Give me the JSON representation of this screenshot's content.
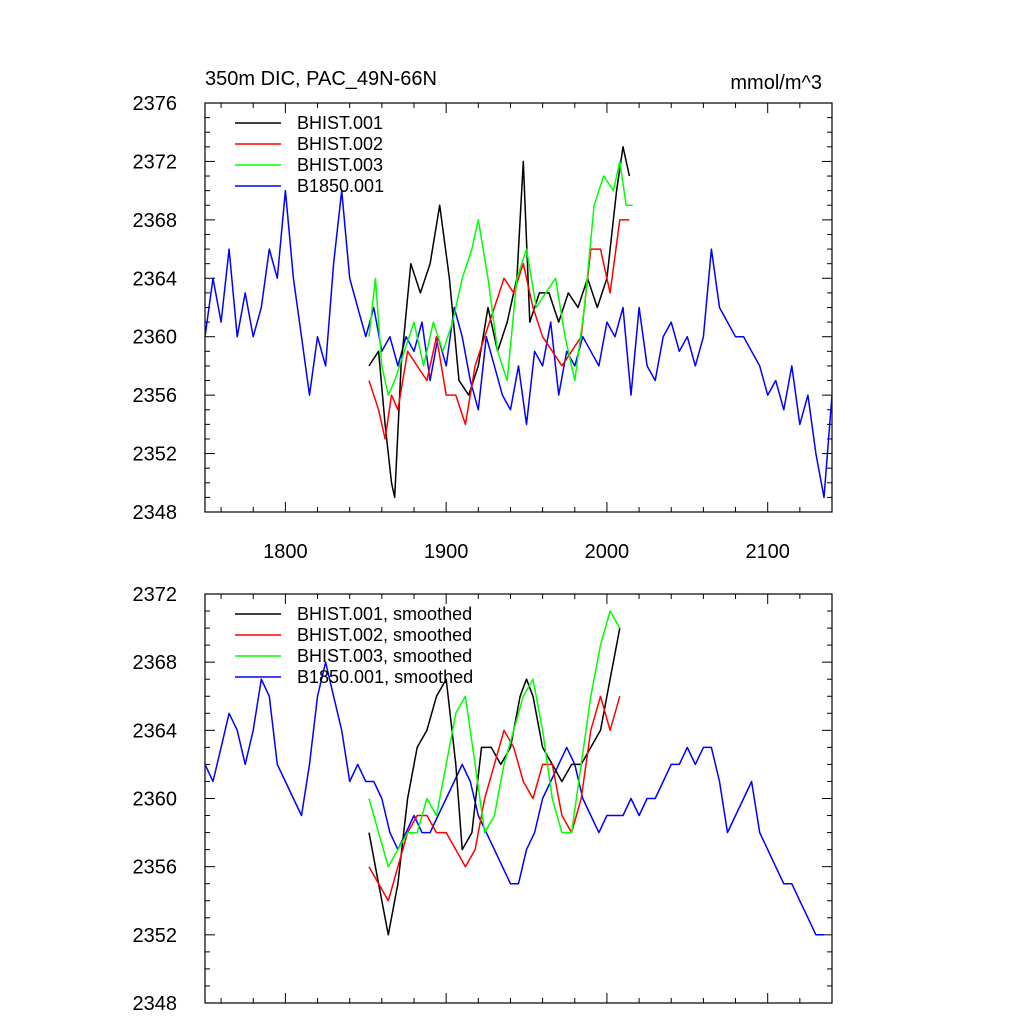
{
  "chart_data": [
    {
      "type": "line",
      "title": "350m DIC, PAC_49N-66N",
      "units": "mmol/m^3",
      "xlim": [
        1750,
        2140
      ],
      "ylim": [
        2348,
        2376
      ],
      "xticks": [
        1800,
        1900,
        2000,
        2100
      ],
      "xtick_labels": [
        "1800",
        "1900",
        "2000",
        "2100"
      ],
      "yticks": [
        2348,
        2352,
        2356,
        2360,
        2364,
        2368,
        2372,
        2376
      ],
      "ytick_labels": [
        "2348",
        "2352",
        "2356",
        "2360",
        "2364",
        "2368",
        "2372",
        "2376"
      ],
      "legend_position": "top-left",
      "series": [
        {
          "name": "BHIST.001",
          "color": "#000000",
          "x": [
            1852,
            1858,
            1862,
            1866,
            1868,
            1872,
            1878,
            1884,
            1890,
            1896,
            1902,
            1908,
            1914,
            1920,
            1926,
            1932,
            1938,
            1944,
            1948,
            1952,
            1958,
            1964,
            1970,
            1976,
            1982,
            1988,
            1994,
            2000,
            2006,
            2010,
            2014
          ],
          "y": [
            2358,
            2359,
            2354,
            2350,
            2349,
            2358,
            2365,
            2363,
            2365,
            2369,
            2364,
            2357,
            2356,
            2358,
            2362,
            2359,
            2361,
            2364,
            2372,
            2361,
            2363,
            2363,
            2361,
            2363,
            2362,
            2364,
            2362,
            2364,
            2370,
            2373,
            2371
          ]
        },
        {
          "name": "BHIST.002",
          "color": "#ff0000",
          "x": [
            1852,
            1858,
            1862,
            1866,
            1870,
            1876,
            1882,
            1888,
            1894,
            1900,
            1906,
            1912,
            1918,
            1924,
            1930,
            1936,
            1942,
            1948,
            1954,
            1960,
            1966,
            1972,
            1978,
            1984,
            1990,
            1996,
            2002,
            2008,
            2014
          ],
          "y": [
            2357,
            2355,
            2353,
            2356,
            2355,
            2359,
            2358,
            2357,
            2360,
            2356,
            2356,
            2354,
            2358,
            2360,
            2362,
            2364,
            2363,
            2365,
            2362,
            2360,
            2359,
            2358,
            2359,
            2360,
            2366,
            2366,
            2363,
            2368,
            2368
          ]
        },
        {
          "name": "BHIST.003",
          "color": "#00ff00",
          "x": [
            1852,
            1856,
            1860,
            1864,
            1868,
            1874,
            1880,
            1886,
            1892,
            1898,
            1904,
            1910,
            1916,
            1920,
            1926,
            1932,
            1938,
            1944,
            1950,
            1956,
            1962,
            1968,
            1974,
            1980,
            1986,
            1992,
            1998,
            2004,
            2008,
            2012,
            2016
          ],
          "y": [
            2360,
            2364,
            2358,
            2356,
            2357,
            2359,
            2361,
            2358,
            2361,
            2359,
            2361,
            2364,
            2366,
            2368,
            2364,
            2359,
            2357,
            2364,
            2366,
            2362,
            2363,
            2364,
            2360,
            2357,
            2362,
            2369,
            2371,
            2370,
            2372,
            2369,
            2369
          ]
        },
        {
          "name": "B1850.001",
          "color": "#0000ff",
          "x": [
            1750,
            1755,
            1760,
            1765,
            1770,
            1775,
            1780,
            1785,
            1790,
            1795,
            1800,
            1805,
            1810,
            1815,
            1820,
            1825,
            1830,
            1835,
            1840,
            1845,
            1850,
            1855,
            1860,
            1865,
            1870,
            1875,
            1880,
            1885,
            1890,
            1895,
            1900,
            1905,
            1910,
            1915,
            1920,
            1925,
            1930,
            1935,
            1940,
            1945,
            1950,
            1955,
            1960,
            1965,
            1970,
            1975,
            1980,
            1985,
            1990,
            1995,
            2000,
            2005,
            2010,
            2015,
            2020,
            2025,
            2030,
            2035,
            2040,
            2045,
            2050,
            2055,
            2060,
            2065,
            2070,
            2075,
            2080,
            2085,
            2090,
            2095,
            2100,
            2105,
            2110,
            2115,
            2120,
            2125,
            2130,
            2135,
            2140
          ],
          "y": [
            2360,
            2364,
            2361,
            2366,
            2360,
            2363,
            2360,
            2362,
            2366,
            2364,
            2370,
            2364,
            2360,
            2356,
            2360,
            2358,
            2365,
            2370,
            2364,
            2362,
            2360,
            2362,
            2359,
            2360,
            2358,
            2360,
            2359,
            2361,
            2357,
            2360,
            2358,
            2362,
            2360,
            2357,
            2355,
            2360,
            2358,
            2356,
            2355,
            2358,
            2354,
            2359,
            2358,
            2361,
            2356,
            2359,
            2358,
            2360,
            2359,
            2358,
            2361,
            2360,
            2362,
            2356,
            2362,
            2358,
            2357,
            2360,
            2361,
            2359,
            2360,
            2358,
            2360,
            2366,
            2362,
            2361,
            2360,
            2360,
            2359,
            2358,
            2356,
            2357,
            2355,
            2358,
            2354,
            2356,
            2352,
            2349,
            2356
          ]
        }
      ]
    },
    {
      "type": "line",
      "title": "",
      "xlim": [
        1750,
        2140
      ],
      "ylim": [
        2348,
        2372
      ],
      "xticks": [
        1800,
        1900,
        2000,
        2100
      ],
      "yticks": [
        2348,
        2352,
        2356,
        2360,
        2364,
        2368,
        2372
      ],
      "ytick_labels": [
        "2348",
        "2352",
        "2356",
        "2360",
        "2364",
        "2368",
        "2372"
      ],
      "legend_position": "top-left",
      "series": [
        {
          "name": "BHIST.001, smoothed",
          "color": "#000000",
          "x": [
            1852,
            1858,
            1864,
            1870,
            1876,
            1882,
            1888,
            1894,
            1900,
            1906,
            1910,
            1916,
            1922,
            1928,
            1934,
            1940,
            1946,
            1950,
            1954,
            1960,
            1966,
            1972,
            1978,
            1984,
            1990,
            1996,
            2002,
            2008
          ],
          "y": [
            2358,
            2355,
            2352,
            2355,
            2360,
            2363,
            2364,
            2366,
            2367,
            2362,
            2357,
            2358,
            2363,
            2363,
            2362,
            2363,
            2366,
            2367,
            2366,
            2363,
            2362,
            2361,
            2362,
            2362,
            2363,
            2364,
            2367,
            2370
          ]
        },
        {
          "name": "BHIST.002, smoothed",
          "color": "#ff0000",
          "x": [
            1852,
            1858,
            1864,
            1870,
            1876,
            1882,
            1888,
            1894,
            1900,
            1906,
            1912,
            1918,
            1924,
            1930,
            1936,
            1942,
            1948,
            1954,
            1960,
            1966,
            1972,
            1978,
            1984,
            1990,
            1996,
            2002,
            2008
          ],
          "y": [
            2356,
            2355,
            2354,
            2356,
            2358,
            2359,
            2359,
            2358,
            2358,
            2357,
            2356,
            2357,
            2360,
            2362,
            2364,
            2363,
            2361,
            2360,
            2362,
            2362,
            2359,
            2358,
            2360,
            2364,
            2366,
            2364,
            2366
          ]
        },
        {
          "name": "BHIST.003, smoothed",
          "color": "#00ff00",
          "x": [
            1852,
            1858,
            1864,
            1870,
            1876,
            1882,
            1888,
            1894,
            1900,
            1906,
            1912,
            1918,
            1924,
            1930,
            1936,
            1942,
            1948,
            1954,
            1960,
            1966,
            1972,
            1978,
            1984,
            1990,
            1996,
            2002,
            2008
          ],
          "y": [
            2360,
            2358,
            2356,
            2357,
            2358,
            2358,
            2360,
            2359,
            2362,
            2365,
            2366,
            2362,
            2358,
            2359,
            2362,
            2364,
            2366,
            2367,
            2364,
            2360,
            2358,
            2358,
            2362,
            2366,
            2369,
            2371,
            2370
          ]
        },
        {
          "name": "B1850.001, smoothed",
          "color": "#0000ff",
          "x": [
            1750,
            1755,
            1760,
            1765,
            1770,
            1775,
            1780,
            1785,
            1790,
            1795,
            1800,
            1805,
            1810,
            1815,
            1820,
            1825,
            1830,
            1835,
            1840,
            1845,
            1850,
            1855,
            1860,
            1865,
            1870,
            1875,
            1880,
            1885,
            1890,
            1895,
            1900,
            1905,
            1910,
            1915,
            1920,
            1925,
            1930,
            1935,
            1940,
            1945,
            1950,
            1955,
            1960,
            1965,
            1970,
            1975,
            1980,
            1985,
            1990,
            1995,
            2000,
            2005,
            2010,
            2015,
            2020,
            2025,
            2030,
            2035,
            2040,
            2045,
            2050,
            2055,
            2060,
            2065,
            2070,
            2075,
            2080,
            2085,
            2090,
            2095,
            2100,
            2105,
            2110,
            2115,
            2120,
            2125,
            2130,
            2135
          ],
          "y": [
            2362,
            2361,
            2363,
            2365,
            2364,
            2362,
            2364,
            2367,
            2366,
            2362,
            2361,
            2360,
            2359,
            2362,
            2366,
            2368,
            2366,
            2364,
            2361,
            2362,
            2361,
            2361,
            2360,
            2358,
            2357,
            2358,
            2359,
            2358,
            2358,
            2359,
            2360,
            2361,
            2362,
            2361,
            2359,
            2358,
            2357,
            2356,
            2355,
            2355,
            2357,
            2358,
            2360,
            2361,
            2362,
            2363,
            2362,
            2360,
            2359,
            2358,
            2359,
            2359,
            2359,
            2360,
            2359,
            2360,
            2360,
            2361,
            2362,
            2362,
            2363,
            2362,
            2363,
            2363,
            2361,
            2358,
            2359,
            2360,
            2361,
            2358,
            2357,
            2356,
            2355,
            2355,
            2354,
            2353,
            2352,
            2352
          ]
        }
      ]
    }
  ]
}
